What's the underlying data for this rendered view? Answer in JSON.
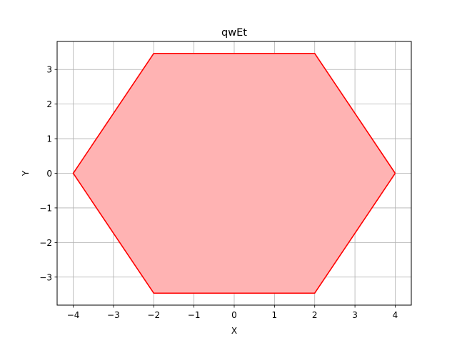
{
  "chart_data": {
    "type": "area",
    "title": "qwEt",
    "xlabel": "X",
    "ylabel": "Y",
    "xlim": [
      -4.4,
      4.4
    ],
    "ylim": [
      -3.81,
      3.81
    ],
    "xticks": [
      -4,
      -3,
      -2,
      -1,
      0,
      1,
      2,
      3,
      4
    ],
    "yticks": [
      -3,
      -2,
      -1,
      0,
      1,
      2,
      3
    ],
    "xtick_labels": [
      "−4",
      "−3",
      "−2",
      "−1",
      "0",
      "1",
      "2",
      "3",
      "4"
    ],
    "ytick_labels": [
      "−3",
      "−2",
      "−1",
      "0",
      "1",
      "2",
      "3"
    ],
    "grid": true,
    "series": [
      {
        "x": [
          4,
          2,
          -2,
          -4,
          -2,
          2,
          4
        ],
        "y": [
          0,
          3.464,
          3.464,
          0,
          -3.464,
          -3.464,
          0
        ],
        "fill_color": "#ffb3b3",
        "edge_color": "#ff0000"
      }
    ]
  }
}
